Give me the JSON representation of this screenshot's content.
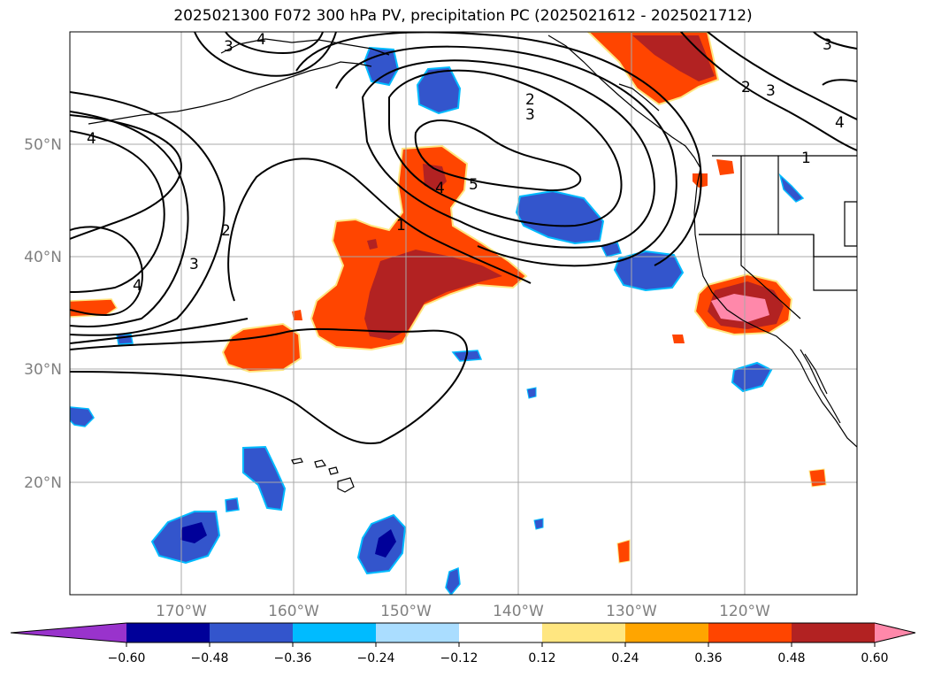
{
  "title": "2025021300 F072 300 hPa PV, precipitation PC (2025021612 - 2025021712)",
  "lat_labels": [
    "50°N",
    "40°N",
    "30°N",
    "20°N"
  ],
  "lon_labels": [
    "170°W",
    "160°W",
    "150°W",
    "140°W",
    "130°W",
    "120°W"
  ],
  "colorbar": {
    "ticks": [
      "−0.60",
      "−0.48",
      "−0.36",
      "−0.24",
      "−0.12",
      "0.12",
      "0.24",
      "0.36",
      "0.48",
      "0.60"
    ],
    "colors": [
      "#9933cc",
      "#000099",
      "#3355cc",
      "#00bbff",
      "#aaddff",
      "#ffffff",
      "#ffe680",
      "#ffa500",
      "#ff4500",
      "#b22222",
      "#ff88aa"
    ]
  },
  "contour_labels": [
    "4",
    "3",
    "4",
    "2",
    "3",
    "4",
    "2",
    "3",
    "5",
    "4",
    "1",
    "3",
    "2",
    "3",
    "4",
    "1"
  ],
  "colors": {
    "red": "#ff4500",
    "darkred": "#b22222",
    "pink": "#ff88aa",
    "blue": "#3355cc",
    "navy": "#000099",
    "cyan": "#00bbff"
  }
}
